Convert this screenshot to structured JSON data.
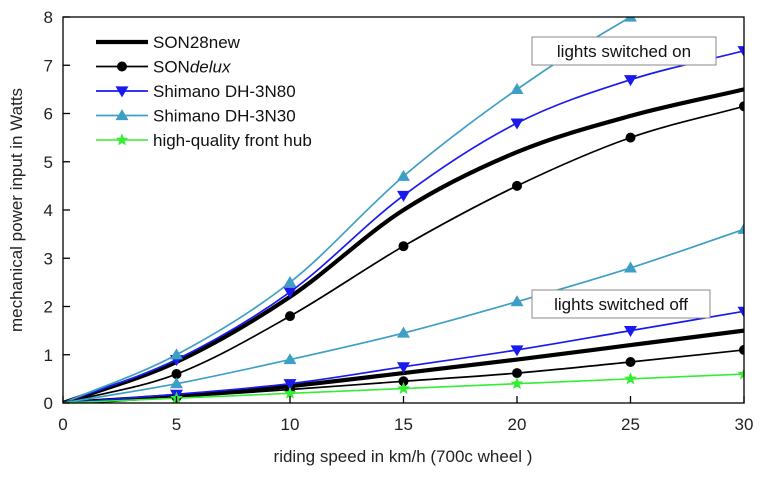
{
  "chart_data": {
    "type": "line",
    "xlabel": "riding speed in km/h (700c wheel )",
    "ylabel": "mechanical power input in Watts",
    "xlim": [
      0,
      30
    ],
    "ylim": [
      0,
      8
    ],
    "xticks": [
      0,
      5,
      10,
      15,
      20,
      25,
      30
    ],
    "yticks": [
      0,
      1,
      2,
      3,
      4,
      5,
      6,
      7,
      8
    ],
    "grid": false,
    "legend_position": "top-left",
    "legend": [
      {
        "key": "son28",
        "label": "SON28new",
        "label_italic": ""
      },
      {
        "key": "sondelux",
        "label": "SON",
        "label_italic": "delux"
      },
      {
        "key": "dh3n80",
        "label": "Shimano DH-3N80",
        "label_italic": ""
      },
      {
        "key": "dh3n30",
        "label": "Shimano DH-3N30",
        "label_italic": ""
      },
      {
        "key": "hq",
        "label": "high-quality front hub",
        "label_italic": ""
      }
    ],
    "annotations": [
      {
        "key": "on",
        "text": "lights switched on"
      },
      {
        "key": "off",
        "text": "lights switched off"
      }
    ],
    "series": [
      {
        "key": "son28",
        "name": "SON28new",
        "condition": "lights switched on",
        "color": "#000000",
        "marker": "none",
        "x": [
          0,
          5,
          10,
          15,
          20,
          25,
          30
        ],
        "y": [
          0,
          0.85,
          2.2,
          4.0,
          5.2,
          5.95,
          6.5
        ]
      },
      {
        "key": "sondelux",
        "name": "SONdelux",
        "condition": "lights switched on",
        "color": "#000000",
        "marker": "circle",
        "x": [
          0,
          5,
          10,
          15,
          20,
          25,
          30
        ],
        "y": [
          0,
          0.6,
          1.8,
          3.25,
          4.5,
          5.5,
          6.15
        ]
      },
      {
        "key": "dh3n80",
        "name": "Shimano DH-3N80",
        "condition": "lights switched on",
        "color": "#1a1aee",
        "marker": "triangle-down",
        "x": [
          0,
          5,
          10,
          15,
          20,
          25,
          30
        ],
        "y": [
          0,
          0.9,
          2.3,
          4.3,
          5.8,
          6.7,
          7.3
        ]
      },
      {
        "key": "dh3n30",
        "name": "Shimano DH-3N30",
        "condition": "lights switched on",
        "color": "#3d9fc4",
        "marker": "triangle-up",
        "x": [
          0,
          5,
          10,
          15,
          20,
          25,
          27.5
        ],
        "y": [
          0,
          1.0,
          2.5,
          4.7,
          6.5,
          8.0,
          8.6
        ]
      },
      {
        "key": "son28",
        "name": "SON28new",
        "condition": "lights switched off",
        "color": "#000000",
        "marker": "none",
        "x": [
          0,
          5,
          10,
          15,
          20,
          25,
          30
        ],
        "y": [
          0,
          0.15,
          0.35,
          0.62,
          0.9,
          1.2,
          1.5
        ]
      },
      {
        "key": "sondelux",
        "name": "SONdelux",
        "condition": "lights switched off",
        "color": "#000000",
        "marker": "circle",
        "x": [
          0,
          5,
          10,
          15,
          20,
          25,
          30
        ],
        "y": [
          0,
          0.12,
          0.28,
          0.45,
          0.62,
          0.85,
          1.1
        ]
      },
      {
        "key": "dh3n80",
        "name": "Shimano DH-3N80",
        "condition": "lights switched off",
        "color": "#1a1aee",
        "marker": "triangle-down",
        "x": [
          0,
          5,
          10,
          15,
          20,
          25,
          30
        ],
        "y": [
          0,
          0.18,
          0.4,
          0.75,
          1.1,
          1.5,
          1.9
        ]
      },
      {
        "key": "dh3n30",
        "name": "Shimano DH-3N30",
        "condition": "lights switched off",
        "color": "#3d9fc4",
        "marker": "triangle-up",
        "x": [
          0,
          5,
          10,
          15,
          20,
          25,
          30
        ],
        "y": [
          0,
          0.4,
          0.9,
          1.45,
          2.1,
          2.8,
          3.6
        ]
      },
      {
        "key": "hq",
        "name": "high-quality front hub",
        "condition": "lights switched off",
        "color": "#33ee33",
        "marker": "star",
        "x": [
          0,
          5,
          10,
          15,
          20,
          25,
          30
        ],
        "y": [
          0,
          0.1,
          0.2,
          0.3,
          0.4,
          0.5,
          0.6
        ]
      }
    ]
  }
}
